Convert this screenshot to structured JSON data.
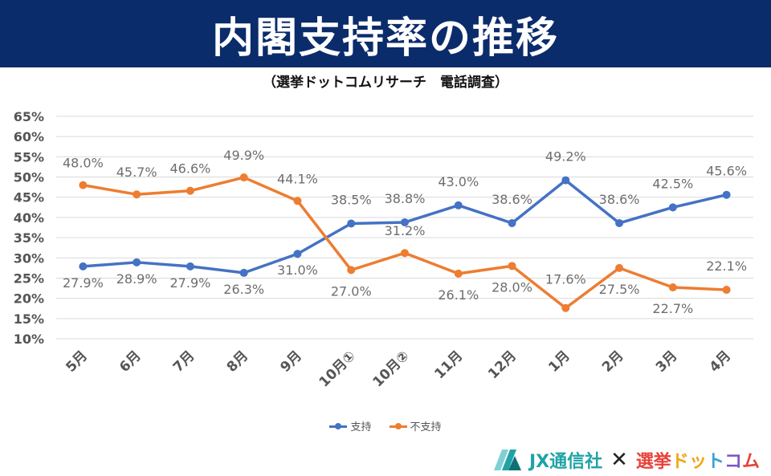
{
  "header": {
    "title": "内閣支持率の推移"
  },
  "subtitle": "（選挙ドットコムリサーチ　電話調査）",
  "footer": {
    "jx_logo": "JX通信社",
    "cross": "✕",
    "senkyo_logo": "選挙ドットコム"
  },
  "colors": {
    "header_bg": "#0b2c6b",
    "support": "#4472c4",
    "nonsupport": "#ed7d31",
    "jx": "#1fa3a6"
  },
  "chart_data": {
    "type": "line",
    "title": "",
    "xlabel": "",
    "ylabel": "",
    "categories": [
      "5月",
      "6月",
      "7月",
      "8月",
      "9月",
      "10月①",
      "10月②",
      "11月",
      "12月",
      "1月",
      "2月",
      "3月",
      "4月"
    ],
    "ylim": [
      10,
      65
    ],
    "yticks": [
      "65%",
      "60%",
      "55%",
      "50%",
      "45%",
      "40%",
      "35%",
      "30%",
      "25%",
      "20%",
      "15%",
      "10%"
    ],
    "grid": true,
    "legend_position": "bottom",
    "series": [
      {
        "name": "支持",
        "values": [
          27.9,
          28.9,
          27.9,
          26.3,
          31.0,
          38.5,
          38.8,
          43.0,
          38.6,
          49.2,
          38.6,
          42.5,
          45.6
        ],
        "labels": [
          "27.9%",
          "28.9%",
          "27.9%",
          "26.3%",
          "31.0%",
          "38.5%",
          "38.8%",
          "43.0%",
          "38.6%",
          "49.2%",
          "38.6%",
          "42.5%",
          "45.6%"
        ]
      },
      {
        "name": "不支持",
        "values": [
          48.0,
          45.7,
          46.6,
          49.9,
          44.1,
          27.0,
          31.2,
          26.1,
          28.0,
          17.6,
          27.5,
          22.7,
          22.1
        ],
        "labels": [
          "48.0%",
          "45.7%",
          "46.6%",
          "49.9%",
          "44.1%",
          "27.0%",
          "31.2%",
          "26.1%",
          "28.0%",
          "17.6%",
          "27.5%",
          "22.7%",
          "22.1%"
        ]
      }
    ]
  }
}
